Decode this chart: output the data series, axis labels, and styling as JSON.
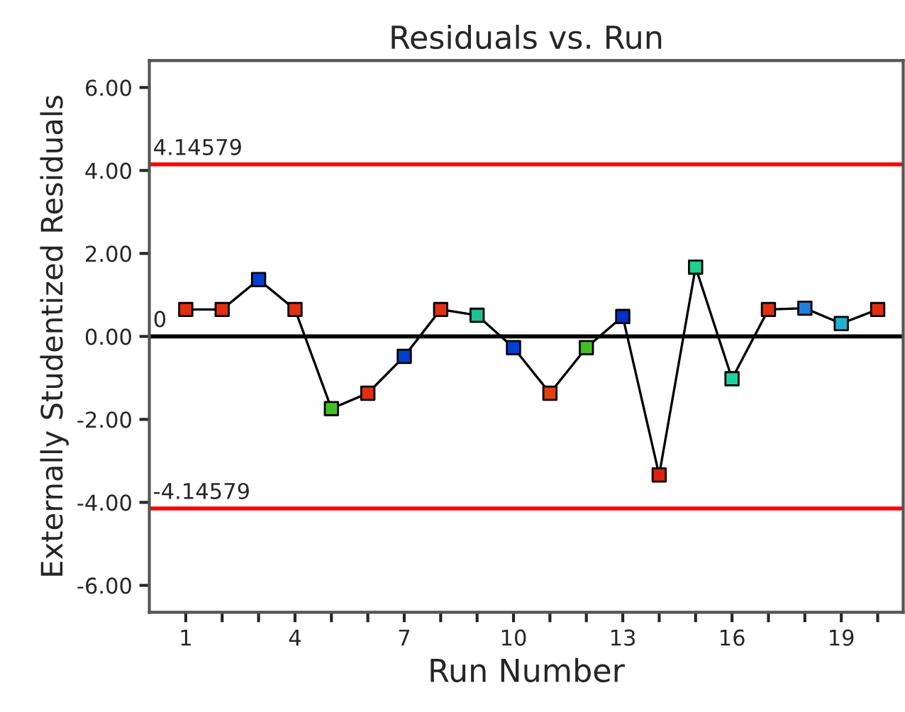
{
  "chart_data": {
    "type": "line",
    "title": "Residuals vs. Run",
    "xlabel": "Run Number",
    "ylabel": "Externally Studentized Residuals",
    "x": [
      1,
      2,
      3,
      4,
      5,
      6,
      7,
      8,
      9,
      10,
      11,
      12,
      13,
      14,
      15,
      16,
      17,
      18,
      19,
      20
    ],
    "series": [
      {
        "color": "#000000",
        "values": [
          0.65,
          0.65,
          1.37,
          0.65,
          -1.74,
          -1.37,
          -0.48,
          0.65,
          0.51,
          -0.27,
          -1.37,
          -0.27,
          0.48,
          -3.34,
          1.67,
          -1.02,
          0.65,
          0.68,
          0.31,
          0.65
        ],
        "colors": [
          "#e03010",
          "#e03010",
          "#0040d0",
          "#e03010",
          "#40c020",
          "#e03010",
          "#0040d0",
          "#e03010",
          "#20c090",
          "#0040d0",
          "#e04010",
          "#40c020",
          "#0030d0",
          "#e02010",
          "#20d090",
          "#20d0a0",
          "#e03010",
          "#2080e0",
          "#20b0d0",
          "#e03010"
        ]
      }
    ],
    "xlim": [
      0,
      20.7
    ],
    "ylim": [
      -6.65,
      6.65
    ],
    "xticks": [
      1,
      {
        "value": 2,
        "label": null
      },
      {
        "value": 3,
        "label": null
      },
      4,
      {
        "value": 5,
        "label": null
      },
      {
        "value": 6,
        "label": null
      },
      7,
      {
        "value": 8,
        "label": null
      },
      {
        "value": 9,
        "label": null
      },
      10,
      {
        "value": 11,
        "label": null
      },
      {
        "value": 12,
        "label": null
      },
      13,
      {
        "value": 14,
        "label": null
      },
      {
        "value": 15,
        "label": null
      },
      16,
      {
        "value": 17,
        "label": null
      },
      {
        "value": 18,
        "label": null
      },
      19,
      {
        "value": 20,
        "label": null
      }
    ],
    "yticks": [
      {
        "value": -6,
        "label": "-6.00"
      },
      {
        "value": -4,
        "label": "-4.00"
      },
      {
        "value": -2,
        "label": "-2.00"
      },
      {
        "value": 0,
        "label": "0.00"
      },
      {
        "value": 2,
        "label": "2.00"
      },
      {
        "value": 4,
        "label": "4.00"
      },
      {
        "value": 6,
        "label": "6.00"
      }
    ],
    "ref_lines": [
      {
        "axis": "y",
        "value": 4.14579,
        "label": "4.14579",
        "color": "#ff0000"
      },
      {
        "axis": "y",
        "value": 0,
        "label": "0",
        "color": "#000000"
      },
      {
        "axis": "y",
        "value": -4.14579,
        "label": "-4.14579",
        "color": "#ff0000"
      }
    ],
    "marker": "square",
    "line_style": "solid",
    "grid": false,
    "legend": false
  }
}
